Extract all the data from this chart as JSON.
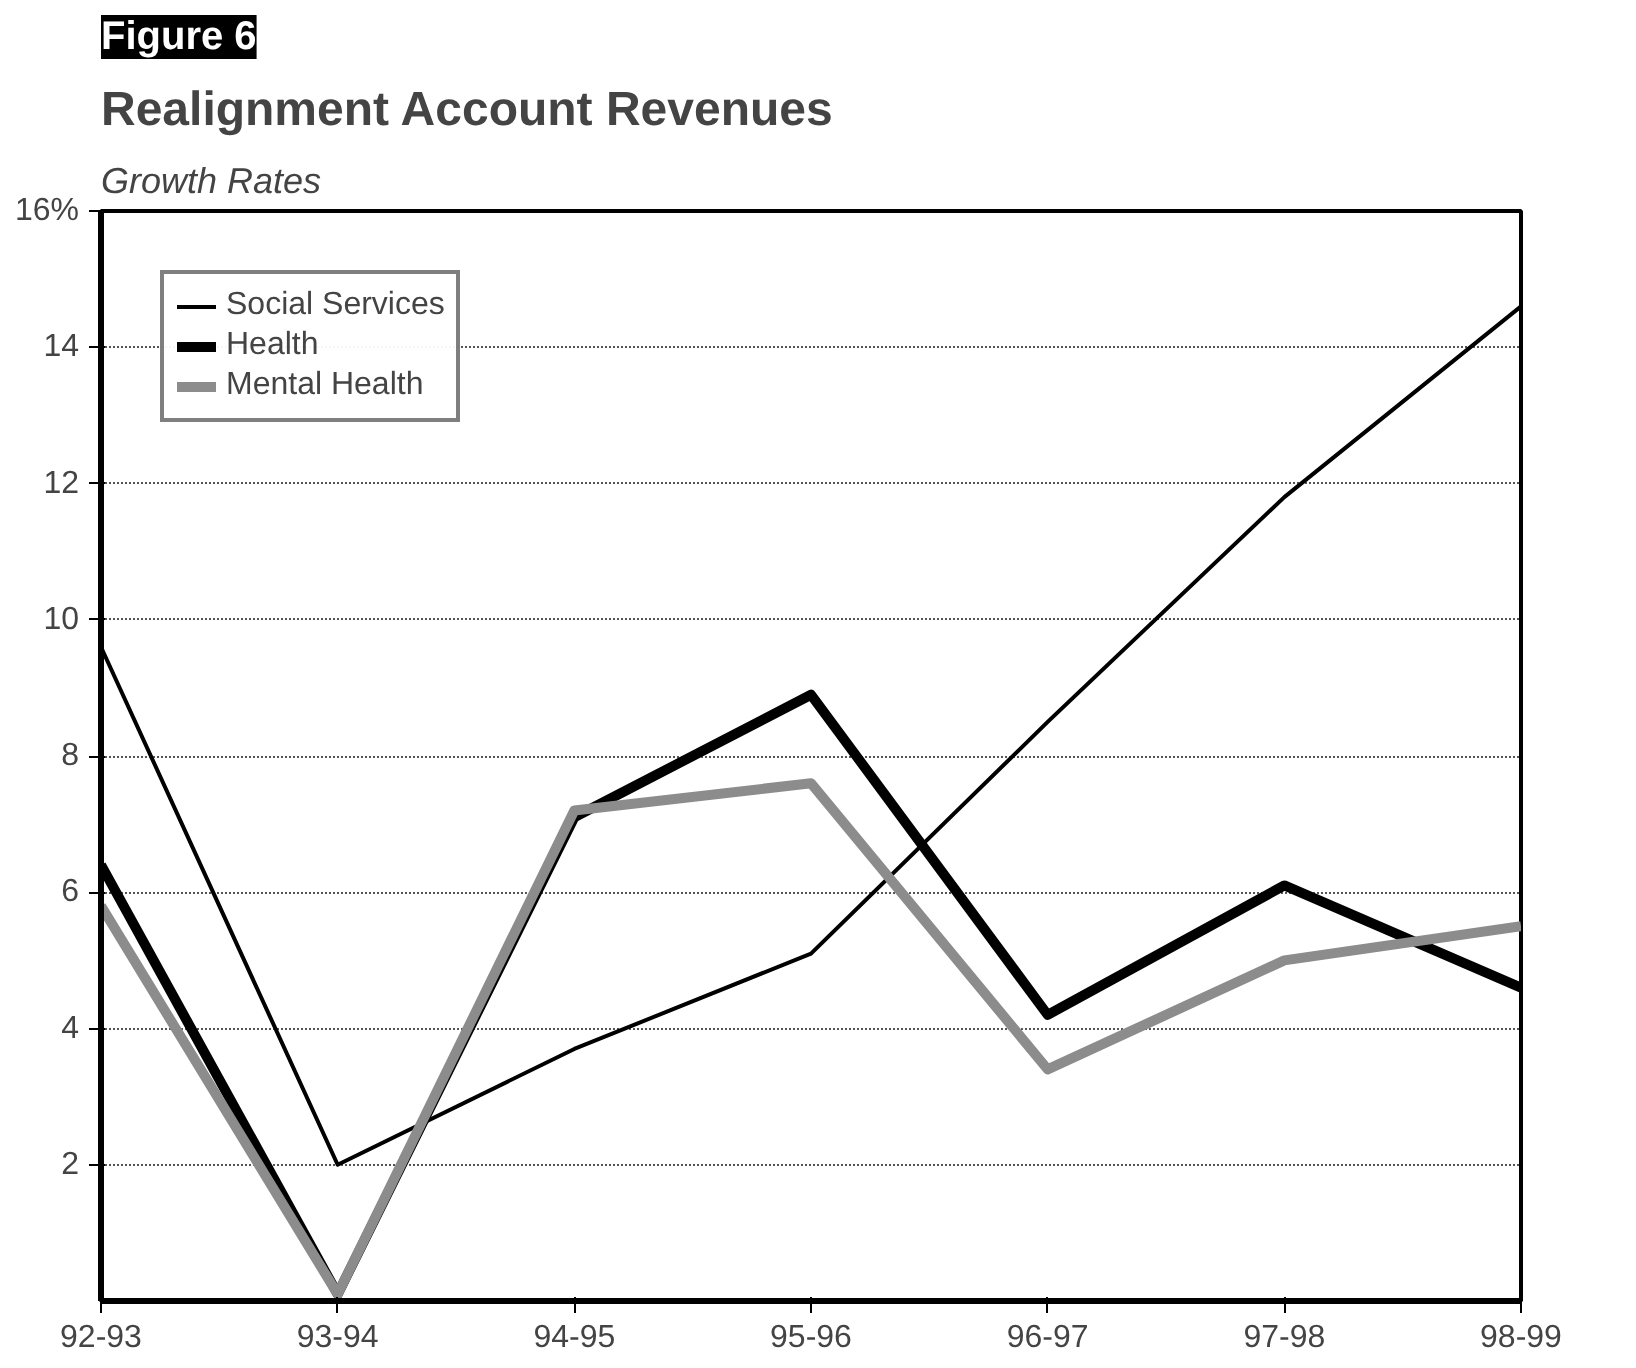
{
  "chart_data": {
    "type": "line",
    "title": "Realignment Account Revenues",
    "subtitle": "Growth Rates",
    "annotations": [
      "Figure 6"
    ],
    "categories": [
      "92-93",
      "93-94",
      "94-95",
      "95-96",
      "96-97",
      "97-98",
      "98-99"
    ],
    "series": [
      {
        "name": "Social Services",
        "color": "#000000",
        "values": [
          9.6,
          2.0,
          3.7,
          5.1,
          8.5,
          11.8,
          14.6
        ]
      },
      {
        "name": "Health",
        "color": "#000000",
        "values": [
          6.4,
          0.1,
          7.1,
          8.9,
          4.2,
          6.1,
          4.6
        ]
      },
      {
        "name": "Mental Health",
        "color": "#8c8c8c",
        "values": [
          5.8,
          0.1,
          7.2,
          7.6,
          3.4,
          5.0,
          5.5
        ]
      }
    ],
    "ylim": [
      0,
      16
    ],
    "yticks": [
      2,
      4,
      6,
      8,
      10,
      12,
      14,
      {
        "value": 16,
        "label": "16%"
      }
    ],
    "grid": "y",
    "legend": "top left",
    "line_style": "solid"
  }
}
